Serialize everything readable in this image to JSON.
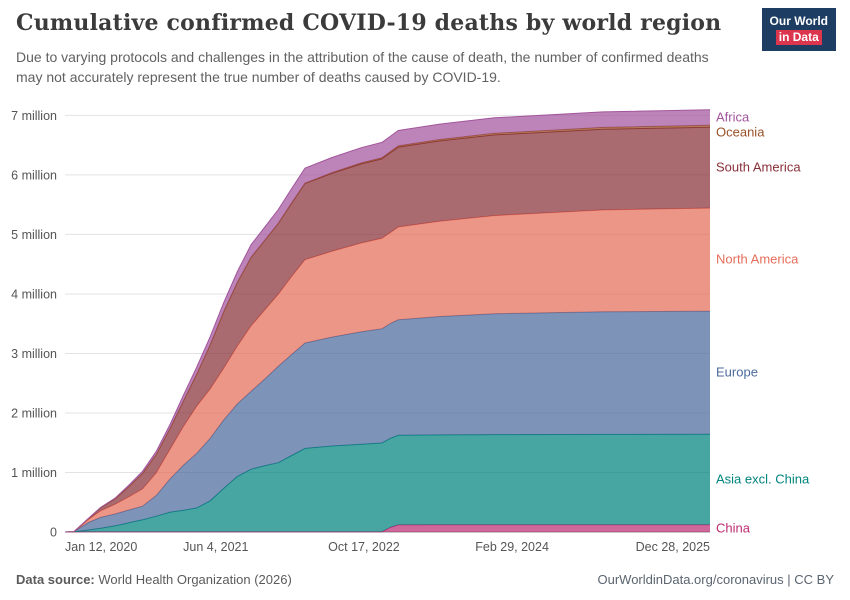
{
  "header": {
    "title": "Cumulative confirmed COVID-19 deaths by world region",
    "subtitle": "Due to varying protocols and challenges in the attribution of the cause of death, the number of confirmed deaths may not accurately represent the true number of deaths caused by COVID-19.",
    "logo": {
      "line1": "Our World",
      "line2": "in Data"
    }
  },
  "footer": {
    "source_label": "Data source:",
    "source_value": "World Health Organization (2026)",
    "credit": "OurWorldinData.org/coronavirus | CC BY"
  },
  "colors": {
    "logo-navy": "#1d3d63",
    "logo-red": "#dc354e",
    "text-dark": "#3b3b3b",
    "text-gray": "#616161"
  },
  "chart_data": {
    "type": "area",
    "stacked": true,
    "title": "Cumulative confirmed COVID-19 deaths by world region",
    "values_unit": "million deaths",
    "x_unit": "days since 2020-01-12",
    "grid": true,
    "legend_position": "right-edge-labels",
    "ylim": [
      0,
      7.3
    ],
    "x": [
      0,
      30,
      80,
      120,
      170,
      215,
      262,
      308,
      355,
      400,
      445,
      490,
      536,
      582,
      628,
      675,
      720,
      765,
      810,
      900,
      1000,
      1070,
      1100,
      1125,
      1265,
      1450,
      1815,
      2177
    ],
    "x_ticks": [
      {
        "day": 0,
        "label": "Jan 12, 2020"
      },
      {
        "day": 509,
        "label": "Jun 4, 2021"
      },
      {
        "day": 1009,
        "label": "Oct 17, 2022"
      },
      {
        "day": 1509,
        "label": "Feb 29, 2024"
      },
      {
        "day": 2177,
        "label": "Dec 28, 2025"
      }
    ],
    "y_ticks": [
      {
        "value": 0,
        "label": "0"
      },
      {
        "value": 1,
        "label": "1 million"
      },
      {
        "value": 2,
        "label": "2 million"
      },
      {
        "value": 3,
        "label": "3 million"
      },
      {
        "value": 4,
        "label": "4 million"
      },
      {
        "value": 5,
        "label": "5 million"
      },
      {
        "value": 6,
        "label": "6 million"
      },
      {
        "value": 7,
        "label": "7 million"
      }
    ],
    "series": [
      {
        "name": "China",
        "slug": "china",
        "color": "#BE2D74",
        "values": [
          0,
          0.002,
          0.003,
          0.0046,
          0.0046,
          0.0047,
          0.0047,
          0.0047,
          0.0048,
          0.0048,
          0.0048,
          0.0048,
          0.0048,
          0.0048,
          0.0049,
          0.0049,
          0.0049,
          0.0049,
          0.0051,
          0.0052,
          0.0053,
          0.0056,
          0.083,
          0.12,
          0.1215,
          0.1219,
          0.122,
          0.122
        ]
      },
      {
        "name": "Asia excl. China",
        "slug": "asia-excl-china",
        "color": "#00847E",
        "values": [
          0,
          0.001,
          0.03,
          0.06,
          0.1,
          0.15,
          0.2,
          0.26,
          0.33,
          0.36,
          0.4,
          0.52,
          0.73,
          0.93,
          1.05,
          1.11,
          1.16,
          1.28,
          1.4,
          1.44,
          1.47,
          1.49,
          1.495,
          1.505,
          1.51,
          1.515,
          1.518,
          1.52
        ]
      },
      {
        "name": "Europe",
        "slug": "europe",
        "color": "#4C6A9C",
        "values": [
          0,
          0.001,
          0.13,
          0.18,
          0.2,
          0.215,
          0.23,
          0.35,
          0.56,
          0.76,
          0.92,
          1.05,
          1.15,
          1.22,
          1.31,
          1.46,
          1.62,
          1.7,
          1.77,
          1.83,
          1.89,
          1.92,
          1.93,
          1.94,
          1.99,
          2.03,
          2.06,
          2.07
        ]
      },
      {
        "name": "North America",
        "slug": "north-america",
        "color": "#E56E5A",
        "values": [
          0,
          0.001,
          0.05,
          0.11,
          0.165,
          0.22,
          0.29,
          0.38,
          0.5,
          0.65,
          0.79,
          0.83,
          0.87,
          0.97,
          1.1,
          1.16,
          1.21,
          1.31,
          1.4,
          1.44,
          1.49,
          1.52,
          1.53,
          1.56,
          1.6,
          1.65,
          1.71,
          1.73
        ]
      },
      {
        "name": "South America",
        "slug": "south-america",
        "color": "#883039",
        "values": [
          0,
          0,
          0.015,
          0.05,
          0.09,
          0.17,
          0.26,
          0.31,
          0.35,
          0.43,
          0.54,
          0.74,
          0.95,
          1.07,
          1.15,
          1.17,
          1.19,
          1.23,
          1.28,
          1.31,
          1.33,
          1.335,
          1.34,
          1.343,
          1.35,
          1.355,
          1.358,
          1.36
        ]
      },
      {
        "name": "Oceania",
        "slug": "oceania",
        "color": "#9A5129",
        "values": [
          0,
          0,
          0.001,
          0.001,
          0.001,
          0.001,
          0.001,
          0.001,
          0.001,
          0.001,
          0.001,
          0.001,
          0.001,
          0.0015,
          0.002,
          0.003,
          0.004,
          0.006,
          0.008,
          0.012,
          0.016,
          0.018,
          0.019,
          0.02,
          0.024,
          0.028,
          0.031,
          0.032
        ]
      },
      {
        "name": "Africa",
        "slug": "africa",
        "color": "#A2559C",
        "values": [
          0,
          0,
          0.004,
          0.008,
          0.012,
          0.024,
          0.036,
          0.05,
          0.068,
          0.095,
          0.117,
          0.135,
          0.15,
          0.18,
          0.21,
          0.22,
          0.23,
          0.24,
          0.251,
          0.254,
          0.256,
          0.2575,
          0.258,
          0.258,
          0.259,
          0.2595,
          0.26,
          0.26
        ]
      }
    ]
  }
}
